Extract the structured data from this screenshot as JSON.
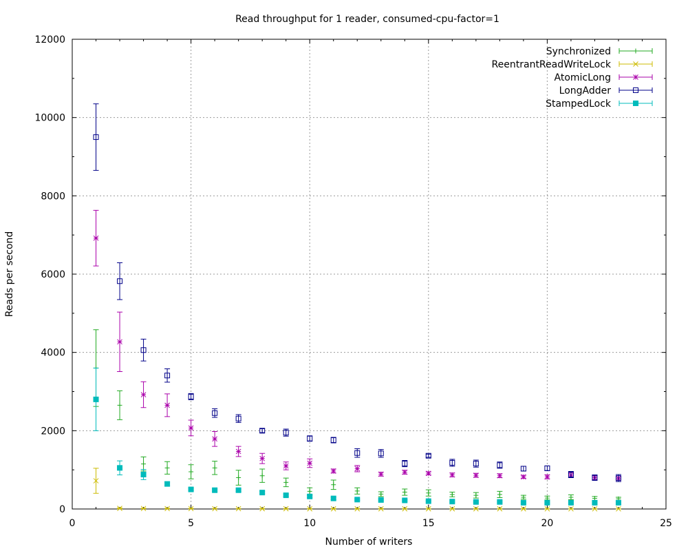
{
  "chart_data": {
    "type": "scatter",
    "title": "Read throughput for 1 reader, consumed-cpu-factor=1",
    "xlabel": "Number of writers",
    "ylabel": "Reads per second",
    "xlim": [
      0,
      25
    ],
    "ylim": [
      0,
      12000
    ],
    "xticks": [
      "0",
      "5",
      "10",
      "15",
      "20",
      "25"
    ],
    "yticks": [
      "0",
      "2000",
      "4000",
      "6000",
      "8000",
      "10000",
      "12000"
    ],
    "grid": true,
    "legend_position": "top-right",
    "x": [
      1,
      2,
      3,
      4,
      5,
      6,
      7,
      8,
      9,
      10,
      11,
      12,
      13,
      14,
      15,
      16,
      17,
      18,
      19,
      20,
      21,
      22,
      23
    ],
    "series": [
      {
        "name": "Synchronized",
        "color": "#22aa22",
        "marker": "plus",
        "values": [
          3600,
          2650,
          1150,
          1050,
          950,
          1050,
          800,
          850,
          680,
          450,
          620,
          460,
          380,
          430,
          410,
          370,
          350,
          370,
          300,
          280,
          300,
          270,
          260
        ],
        "errors": [
          980,
          370,
          180,
          160,
          180,
          170,
          190,
          170,
          110,
          90,
          120,
          80,
          60,
          80,
          80,
          60,
          70,
          80,
          50,
          50,
          60,
          50,
          40
        ]
      },
      {
        "name": "ReentrantReadWriteLock",
        "color": "#ccbb00",
        "marker": "cross",
        "values": [
          720,
          15,
          12,
          10,
          10,
          8,
          8,
          6,
          6,
          5,
          5,
          5,
          5,
          4,
          4,
          4,
          4,
          4,
          4,
          3,
          3,
          3,
          3
        ],
        "errors": [
          320,
          10,
          6,
          5,
          5,
          4,
          4,
          3,
          3,
          3,
          3,
          3,
          3,
          2,
          2,
          2,
          2,
          2,
          2,
          2,
          2,
          2,
          2
        ]
      },
      {
        "name": "AtomicLong",
        "color": "#aa00aa",
        "marker": "star",
        "values": [
          6920,
          4270,
          2920,
          2650,
          2070,
          1790,
          1470,
          1290,
          1100,
          1170,
          970,
          1030,
          890,
          940,
          910,
          870,
          860,
          850,
          820,
          820,
          860,
          800,
          780
        ],
        "errors": [
          710,
          760,
          330,
          290,
          200,
          190,
          130,
          130,
          100,
          110,
          50,
          80,
          50,
          50,
          40,
          50,
          50,
          50,
          40,
          50,
          60,
          50,
          40
        ]
      },
      {
        "name": "LongAdder",
        "color": "#000088",
        "marker": "square",
        "values": [
          9500,
          5820,
          4060,
          3410,
          2870,
          2450,
          2310,
          2000,
          1950,
          1800,
          1760,
          1430,
          1420,
          1160,
          1360,
          1180,
          1160,
          1120,
          1030,
          1040,
          880,
          800,
          790
        ],
        "errors": [
          850,
          470,
          280,
          170,
          80,
          110,
          100,
          50,
          90,
          70,
          70,
          110,
          100,
          80,
          40,
          90,
          90,
          80,
          60,
          60,
          80,
          70,
          90
        ]
      },
      {
        "name": "StampedLock",
        "color": "#00bbbb",
        "marker": "filled-square",
        "values": [
          2800,
          1050,
          880,
          640,
          500,
          480,
          480,
          420,
          350,
          320,
          270,
          240,
          230,
          220,
          200,
          190,
          180,
          180,
          160,
          160,
          160,
          160,
          160
        ],
        "errors": [
          800,
          180,
          130,
          50,
          30,
          30,
          30,
          30,
          30,
          30,
          30,
          20,
          20,
          20,
          20,
          20,
          20,
          20,
          20,
          20,
          20,
          20,
          20
        ]
      }
    ]
  }
}
